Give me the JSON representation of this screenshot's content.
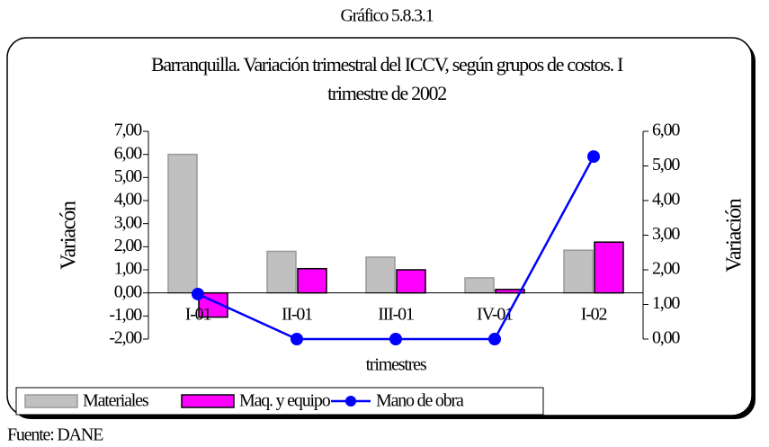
{
  "chart_data": {
    "type": "bar",
    "header": "Gráfico 5.8.3.1",
    "title": "Barranquilla. Variación trimestral del ICCV, según grupos de costos. I trimestre de 2002",
    "ylabel": "Variacón",
    "y2label": "Variación",
    "xlabel": "trimestres",
    "source": "Fuente: DANE",
    "categories": [
      "I-01",
      "II-01",
      "III-01",
      "IV-01",
      "I-02"
    ],
    "series": [
      {
        "name": "Materiales",
        "type": "bar",
        "color": "#c0c0c0",
        "values": [
          6.0,
          1.8,
          1.55,
          0.65,
          1.85
        ]
      },
      {
        "name": "Maq. y equipo",
        "type": "bar",
        "color": "#ff00ff",
        "values": [
          -1.05,
          1.05,
          1.0,
          0.15,
          2.2
        ]
      },
      {
        "name": "Mano de obra",
        "type": "line",
        "axis": "y2",
        "color": "#0000ff",
        "values": [
          1.3,
          0.0,
          0.0,
          0.0,
          5.27
        ]
      }
    ],
    "ylim": [
      -2,
      7
    ],
    "yticks": [
      {
        "value": 7,
        "label": "7,00"
      },
      {
        "value": 6,
        "label": "6,00"
      },
      {
        "value": 5,
        "label": "5,00"
      },
      {
        "value": 4,
        "label": "4,00"
      },
      {
        "value": 3,
        "label": "3,00"
      },
      {
        "value": 2,
        "label": "2,00"
      },
      {
        "value": 1,
        "label": "1,00"
      },
      {
        "value": 0,
        "label": "0,00"
      },
      {
        "value": -1,
        "label": "-1,00"
      },
      {
        "value": -2,
        "label": "-2,00"
      }
    ],
    "y2lim": [
      0,
      6
    ],
    "y2ticks": [
      {
        "value": 6,
        "label": "6,00"
      },
      {
        "value": 5,
        "label": "5,00"
      },
      {
        "value": 4,
        "label": "4,00"
      },
      {
        "value": 3,
        "label": "3,00"
      },
      {
        "value": 2,
        "label": "2,00"
      },
      {
        "value": 1,
        "label": "1,00"
      },
      {
        "value": 0,
        "label": "0,00"
      }
    ]
  }
}
